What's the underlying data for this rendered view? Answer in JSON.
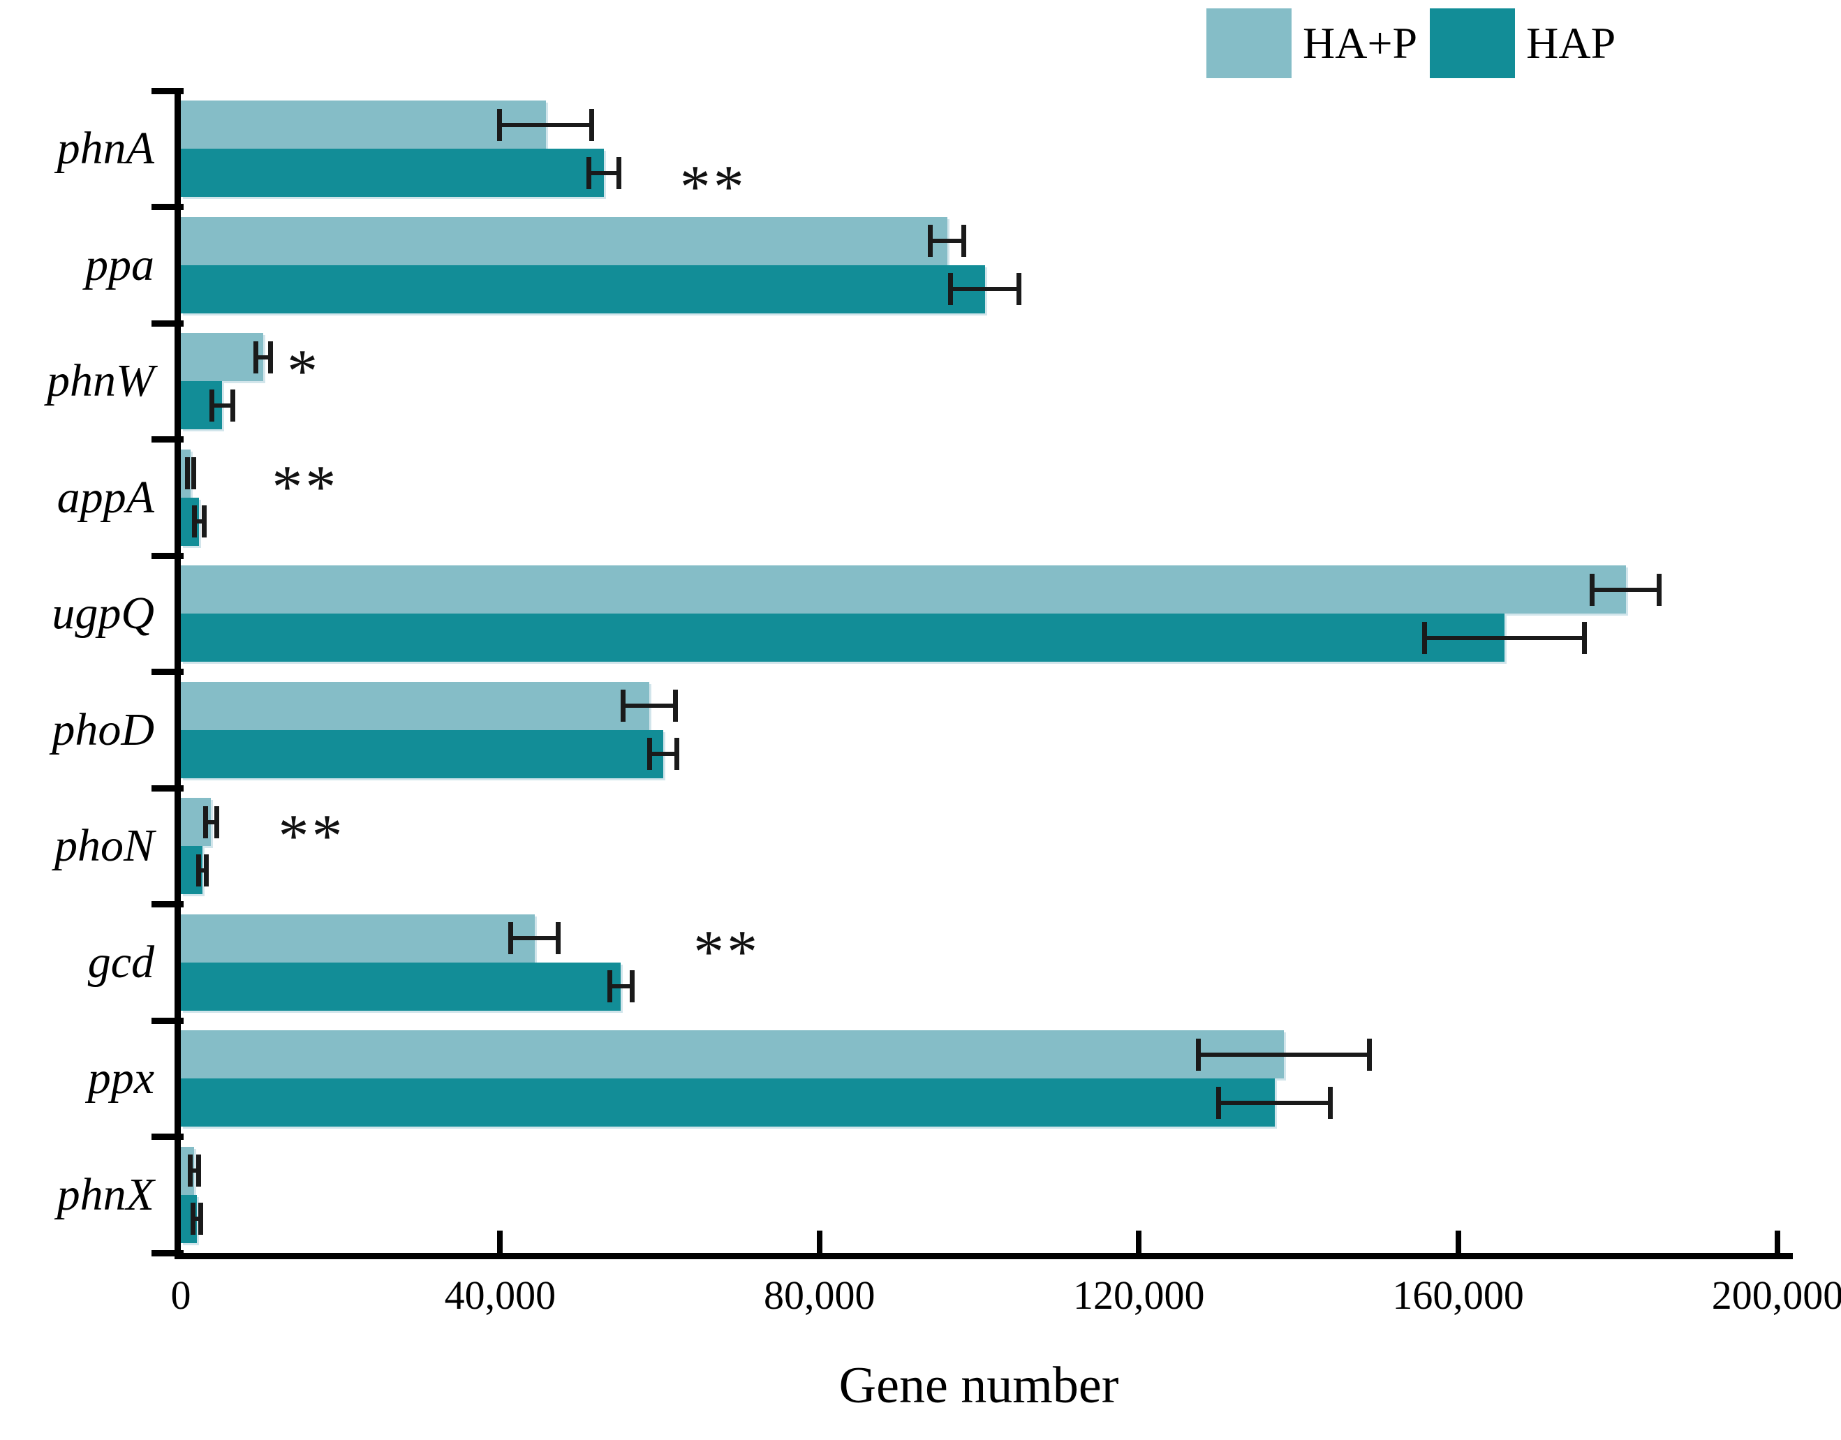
{
  "chart_data": {
    "type": "bar",
    "orientation": "horizontal",
    "title": "",
    "xlabel": "Gene number",
    "ylabel": "",
    "xlim": [
      0,
      200000
    ],
    "x_ticks": [
      0,
      40000,
      80000,
      120000,
      160000,
      200000
    ],
    "x_tick_labels": [
      "0",
      "40,000",
      "80,000",
      "120,000",
      "160,000",
      "200,000"
    ],
    "grid": false,
    "legend_position": "top-right",
    "categories": [
      "phnA",
      "ppa",
      "phnW",
      "appA",
      "ugpQ",
      "phoD",
      "phoN",
      "gcd",
      "ppx",
      "phnX"
    ],
    "series": [
      {
        "name": "HA+P",
        "color": "#85BDC7",
        "values": [
          45700,
          96000,
          10300,
          1200,
          181000,
          58700,
          3800,
          44300,
          138200,
          1700
        ],
        "errors": [
          5800,
          2100,
          900,
          400,
          4200,
          3300,
          700,
          3000,
          10700,
          500
        ]
      },
      {
        "name": "HAP",
        "color": "#128D97",
        "values": [
          53000,
          100700,
          5200,
          2300,
          165800,
          60400,
          2700,
          55100,
          137000,
          2000
        ],
        "errors": [
          1900,
          4300,
          1300,
          600,
          10000,
          1700,
          500,
          1400,
          7000,
          500
        ]
      }
    ],
    "significance": [
      {
        "category": "phnA",
        "marker": "**",
        "x": 62500,
        "align_series": "HAP"
      },
      {
        "category": "phnW",
        "marker": "*",
        "x": 13300,
        "align_series": "HA+P"
      },
      {
        "category": "appA",
        "marker": "**",
        "x": 11400,
        "align_series": "HA+P"
      },
      {
        "category": "phoN",
        "marker": "**",
        "x": 12200,
        "align_series": "HA+P"
      },
      {
        "category": "gcd",
        "marker": "**",
        "x": 64200,
        "align_series": "HA+P"
      }
    ]
  }
}
